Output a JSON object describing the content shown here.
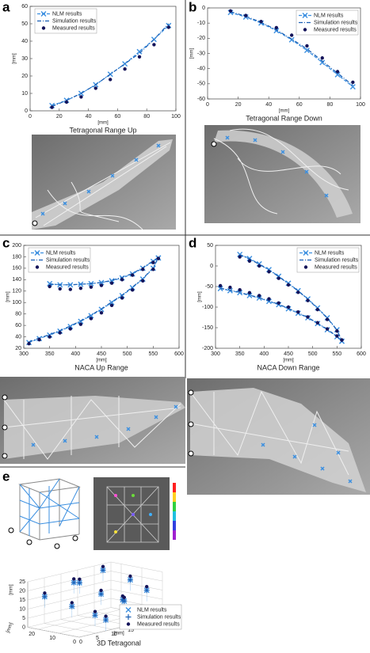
{
  "panel_labels": [
    "a",
    "b",
    "c",
    "d",
    "e"
  ],
  "chart_data": [
    {
      "type": "line",
      "title": "Tetragonal Range Up",
      "xlabel": "[mm]",
      "ylabel": "[mm]",
      "x": [
        15,
        25,
        35,
        45,
        55,
        65,
        75,
        85,
        95
      ],
      "xlim": [
        0,
        100
      ],
      "xticks": [
        0,
        20,
        40,
        60,
        80,
        100
      ],
      "ylim": [
        0,
        60
      ],
      "yticks": [
        0,
        10,
        20,
        30,
        40,
        50,
        60
      ],
      "grid": false,
      "legend": "upper left",
      "series": [
        {
          "name": "NLM results",
          "color": "#3b8fe0",
          "line": "dashed",
          "marker": "x",
          "values": [
            3,
            6,
            10,
            15,
            21,
            27,
            34,
            41,
            49
          ]
        },
        {
          "name": "Simulation results",
          "color": "#1a5fb4",
          "line": "dashdot",
          "marker": "none",
          "values": [
            2.5,
            6,
            10,
            15,
            21,
            27,
            33,
            41,
            50
          ]
        },
        {
          "name": "Measured results",
          "color": "#14145a",
          "line": "none",
          "marker": "dot",
          "values": [
            2,
            5,
            8,
            13,
            18,
            24,
            31,
            38,
            48
          ]
        }
      ]
    },
    {
      "type": "line",
      "title": "Tetragonal Range Down",
      "xlabel": "[mm]",
      "ylabel": "[mm]",
      "x": [
        15,
        25,
        35,
        45,
        55,
        65,
        75,
        85,
        95
      ],
      "xlim": [
        0,
        100
      ],
      "xticks": [
        0,
        20,
        40,
        60,
        80,
        100
      ],
      "ylim": [
        -60,
        0
      ],
      "yticks": [
        -60,
        -50,
        -40,
        -30,
        -20,
        -10,
        0
      ],
      "grid": false,
      "legend": "upper right",
      "series": [
        {
          "name": "NLM results",
          "color": "#3b8fe0",
          "line": "dashed",
          "marker": "x",
          "values": [
            -3,
            -6,
            -10,
            -15,
            -21,
            -28,
            -36,
            -44,
            -52
          ]
        },
        {
          "name": "Simulation results",
          "color": "#1a5fb4",
          "line": "dashdot",
          "marker": "none",
          "values": [
            -2.5,
            -5.5,
            -9.5,
            -14.5,
            -20.5,
            -27,
            -35,
            -43,
            -51
          ]
        },
        {
          "name": "Measured results",
          "color": "#14145a",
          "line": "none",
          "marker": "dot",
          "values": [
            -2,
            -5,
            -9,
            -13,
            -18,
            -25,
            -33,
            -42,
            -49
          ]
        }
      ]
    },
    {
      "type": "line",
      "title": "NACA Up Range",
      "xlabel": "[mm]",
      "ylabel": "[mm]",
      "x": [
        310,
        330,
        350,
        370,
        390,
        410,
        430,
        450,
        470,
        490,
        510,
        530,
        550,
        560,
        null,
        350,
        370,
        390,
        410,
        430,
        450,
        470,
        490,
        510,
        530,
        550,
        560
      ],
      "xlim": [
        300,
        600
      ],
      "xticks": [
        300,
        350,
        400,
        450,
        500,
        550,
        600
      ],
      "ylim": [
        20,
        200
      ],
      "yticks": [
        20,
        40,
        60,
        80,
        100,
        120,
        140,
        160,
        180,
        200
      ],
      "grid": false,
      "legend": "upper left",
      "series": [
        {
          "name": "NLM results",
          "color": "#3b8fe0",
          "line": "dashed",
          "marker": "x",
          "values": [
            30,
            37,
            43,
            50,
            58,
            67,
            77,
            88,
            100,
            112,
            126,
            141,
            160,
            178,
            null,
            133,
            131,
            131,
            132,
            133,
            135,
            138,
            143,
            150,
            160,
            172,
            178
          ]
        },
        {
          "name": "Simulation results",
          "color": "#1a5fb4",
          "line": "dashdot",
          "marker": "none",
          "values": [
            31,
            38,
            44,
            51,
            59,
            68,
            78,
            89,
            101,
            113,
            127,
            142,
            161,
            179,
            null,
            132,
            131,
            131,
            132,
            133,
            135,
            139,
            144,
            151,
            161,
            173,
            179
          ]
        },
        {
          "name": "Measured results",
          "color": "#14145a",
          "line": "none",
          "marker": "dot",
          "values": [
            28,
            35,
            40,
            47,
            54,
            62,
            72,
            82,
            95,
            108,
            122,
            138,
            158,
            177,
            null,
            128,
            124,
            123,
            125,
            127,
            130,
            134,
            140,
            148,
            158,
            170,
            177
          ]
        }
      ]
    },
    {
      "type": "line",
      "title": "NACA Down Range",
      "xlabel": "[mm]",
      "ylabel": "[mm]",
      "x": [
        310,
        330,
        350,
        370,
        390,
        410,
        430,
        450,
        470,
        490,
        510,
        530,
        550,
        560,
        null,
        350,
        370,
        390,
        410,
        430,
        450,
        470,
        490,
        510,
        530,
        550,
        560
      ],
      "xlim": [
        300,
        600
      ],
      "xticks": [
        300,
        350,
        400,
        450,
        500,
        550,
        600
      ],
      "ylim": [
        -200,
        50
      ],
      "yticks": [
        -200,
        -150,
        -100,
        -50,
        0,
        50
      ],
      "grid": false,
      "legend": "upper right",
      "series": [
        {
          "name": "NLM results",
          "color": "#3b8fe0",
          "line": "dashed",
          "marker": "x",
          "values": [
            -55,
            -60,
            -65,
            -72,
            -78,
            -86,
            -94,
            -104,
            -115,
            -126,
            -140,
            -155,
            -172,
            -183,
            null,
            28,
            18,
            5,
            -9,
            -25,
            -42,
            -60,
            -80,
            -102,
            -126,
            -155,
            -183
          ]
        },
        {
          "name": "Simulation results",
          "color": "#1a5fb4",
          "line": "dashdot",
          "marker": "none",
          "values": [
            -54,
            -59,
            -64,
            -71,
            -77,
            -85,
            -93,
            -103,
            -114,
            -125,
            -139,
            -154,
            -171,
            -182,
            null,
            27,
            17,
            4,
            -10,
            -26,
            -43,
            -61,
            -81,
            -103,
            -127,
            -156,
            -182
          ]
        },
        {
          "name": "Measured results",
          "color": "#14145a",
          "line": "none",
          "marker": "dot",
          "values": [
            -48,
            -52,
            -58,
            -65,
            -72,
            -80,
            -90,
            -100,
            -112,
            -124,
            -138,
            -153,
            -170,
            -180,
            null,
            22,
            12,
            0,
            -14,
            -30,
            -46,
            -64,
            -84,
            -106,
            -130,
            -158,
            -180
          ]
        }
      ]
    },
    {
      "type": "scatter3d",
      "title": "3D Tetragonal",
      "xlabel": "[mm]",
      "ylabel": "[mm]",
      "zlabel": "[mm]",
      "x": [
        2,
        12,
        22,
        4,
        14,
        24,
        6,
        16,
        24,
        10,
        18,
        8
      ],
      "y": [
        20,
        22,
        24,
        10,
        12,
        14,
        2,
        4,
        6,
        16,
        8,
        0
      ],
      "xlim": [
        0,
        25
      ],
      "xticks": [
        0,
        5,
        10,
        15,
        20,
        25
      ],
      "ylim": [
        0,
        25
      ],
      "yticks": [
        0,
        10,
        20
      ],
      "zlim": [
        0,
        25
      ],
      "zticks": [
        0,
        5,
        10,
        15,
        20,
        25
      ],
      "grid": true,
      "legend": "lower right",
      "series": [
        {
          "name": "NLM results",
          "color": "#3b8fe0",
          "marker": "x",
          "values": [
            17,
            20,
            22,
            13,
            15,
            18,
            9,
            12,
            14,
            22,
            11,
            6
          ]
        },
        {
          "name": "Simulation results",
          "color": "#1a5fb4",
          "marker": "plus",
          "values": [
            17,
            20,
            22,
            13,
            15,
            18,
            9,
            12,
            14,
            22,
            11,
            6
          ]
        },
        {
          "name": "Measured results",
          "color": "#14145a",
          "marker": "dot",
          "values": [
            19,
            22,
            24,
            15,
            17,
            20,
            11,
            14,
            16,
            24,
            13,
            8
          ]
        }
      ]
    }
  ]
}
